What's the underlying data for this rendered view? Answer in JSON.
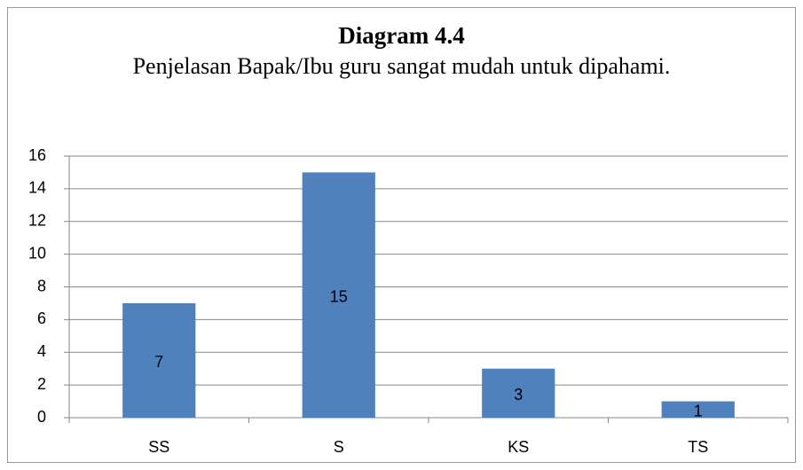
{
  "chart_data": {
    "type": "bar",
    "title": "Diagram 4.4",
    "subtitle": "Penjelasan Bapak/Ibu guru sangat mudah untuk dipahami.",
    "categories": [
      "SS",
      "S",
      "KS",
      "TS"
    ],
    "values": [
      7,
      15,
      3,
      1
    ],
    "color": "#4f81bd",
    "ylim": [
      0,
      16
    ],
    "yticks": [
      0,
      2,
      4,
      6,
      8,
      10,
      12,
      14,
      16
    ],
    "grid": true
  }
}
